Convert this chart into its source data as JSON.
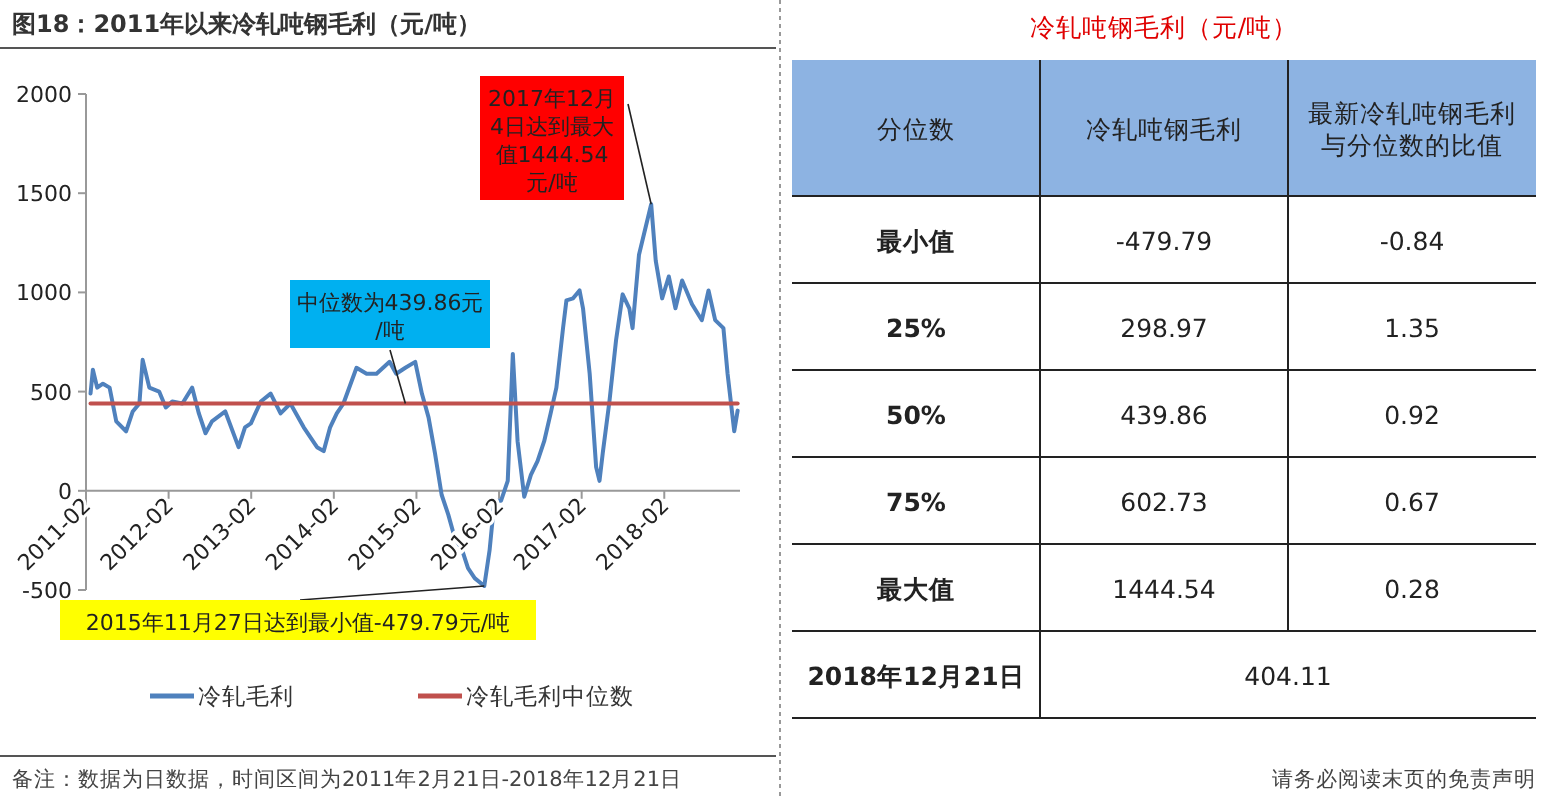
{
  "chart_data": [
    {
      "type": "line",
      "title": "图18：2011年以来冷轧吨钢毛利（元/吨）",
      "xlim": [
        "2011-02",
        "2019-01"
      ],
      "ylim": [
        -500,
        2000
      ],
      "yticks": [
        -500,
        0,
        500,
        1000,
        1500,
        2000
      ],
      "xticks": [
        "2011-02",
        "2012-02",
        "2013-02",
        "2014-02",
        "2015-02",
        "2016-02",
        "2017-02",
        "2018-02"
      ],
      "grid": false,
      "legend": "bottom",
      "marker": "none",
      "line_style": "solid",
      "series": [
        {
          "name": "冷轧毛利",
          "color": "#4f81bd",
          "x": [
            "2011-02-21",
            "2011-03-01",
            "2011-03-20",
            "2011-04-15",
            "2011-05-14",
            "2011-06-13",
            "2011-07-26",
            "2011-08-25",
            "2011-09-24",
            "2011-10-08",
            "2011-11-07",
            "2011-12-20",
            "2012-01-19",
            "2012-02-17",
            "2012-04-01",
            "2012-05-14",
            "2012-06-13",
            "2012-07-12",
            "2012-08-10",
            "2012-10-08",
            "2012-12-06",
            "2013-01-04",
            "2013-01-30",
            "2013-03-13",
            "2013-04-26",
            "2013-06-09",
            "2013-07-22",
            "2013-09-20",
            "2013-11-18",
            "2013-12-17",
            "2014-01-15",
            "2014-02-14",
            "2014-03-13",
            "2014-05-10",
            "2014-06-24",
            "2014-08-07",
            "2014-10-04",
            "2014-11-03",
            "2014-12-13",
            "2015-01-26",
            "2015-02-25",
            "2015-03-24",
            "2015-04-22",
            "2015-05-21",
            "2015-06-20",
            "2015-07-19",
            "2015-08-18",
            "2015-09-16",
            "2015-10-15",
            "2015-11-27",
            "2015-12-20",
            "2016-01-11",
            "2016-02-10",
            "2016-03-09",
            "2016-04-01",
            "2016-04-22",
            "2016-05-21",
            "2016-06-20",
            "2016-07-19",
            "2016-08-18",
            "2016-09-16",
            "2016-10-11",
            "2016-11-10",
            "2016-11-25",
            "2016-12-24",
            "2017-01-22",
            "2017-02-07",
            "2017-03-06",
            "2017-04-04",
            "2017-04-19",
            "2017-05-03",
            "2017-06-02",
            "2017-07-01",
            "2017-07-30",
            "2017-08-29",
            "2017-09-13",
            "2017-10-11",
            "2017-12-04",
            "2017-12-24",
            "2018-01-22",
            "2018-02-21",
            "2018-03-20",
            "2018-04-19",
            "2018-06-02",
            "2018-07-15",
            "2018-08-14",
            "2018-09-13",
            "2018-10-19",
            "2018-11-07",
            "2018-12-06",
            "2018-12-21"
          ],
          "values": [
            490,
            610,
            520,
            540,
            520,
            350,
            300,
            400,
            440,
            660,
            520,
            500,
            420,
            450,
            440,
            520,
            390,
            290,
            350,
            400,
            220,
            320,
            340,
            450,
            490,
            390,
            440,
            320,
            220,
            200,
            320,
            390,
            440,
            620,
            590,
            590,
            650,
            590,
            620,
            650,
            490,
            370,
            190,
            -20,
            -120,
            -240,
            -290,
            -390,
            -440,
            -479.79,
            -300,
            -50,
            -50,
            50,
            690,
            250,
            -30,
            80,
            150,
            250,
            390,
            520,
            820,
            960,
            970,
            1010,
            920,
            590,
            120,
            50,
            190,
            450,
            760,
            990,
            920,
            820,
            1190,
            1444.54,
            1160,
            970,
            1080,
            920,
            1060,
            940,
            860,
            1010,
            860,
            820,
            590,
            300,
            404.11
          ]
        },
        {
          "name": "冷轧毛利中位数",
          "color": "#c0504d",
          "x": [
            "2011-02-21",
            "2018-12-21"
          ],
          "values": [
            439.86,
            439.86
          ]
        }
      ],
      "annotations": [
        {
          "text": "2017年12月4日达到最大值1444.54元/吨",
          "x": "2017-12-04",
          "y": 1444.54
        },
        {
          "text": "中位数为439.86元/吨",
          "x": "2014-12-13",
          "y": 439.86
        },
        {
          "text": "2015年11月27日达到最小值-479.79元/吨",
          "x": "2015-11-27",
          "y": -479.79
        },
        "备注：数据为日数据，时间区间为2011年2月21日-2018年12月21日"
      ]
    },
    {
      "type": "heatmap",
      "title": "冷轧吨钢毛利（元/吨）",
      "ylabel": "分位数",
      "data_labels": true,
      "categories": [
        "冷轧吨钢毛利",
        "最新冷轧吨钢毛利与分位数的比值"
      ],
      "y_categories": [
        "最小值",
        "25%",
        "50%",
        "75%",
        "最大值",
        "2018年12月21日"
      ],
      "cells": [
        [
          -479.79,
          -0.84
        ],
        [
          298.97,
          1.35
        ],
        [
          439.86,
          0.92
        ],
        [
          602.73,
          0.67
        ],
        [
          1444.54,
          0.28
        ],
        [
          404.11,
          null
        ]
      ],
      "annotations": [
        "请务必阅读末页的免责声明"
      ]
    }
  ]
}
